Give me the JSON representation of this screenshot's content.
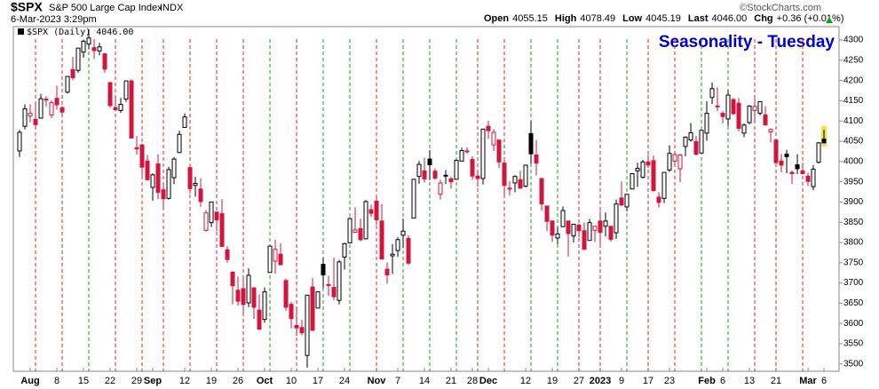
{
  "header": {
    "symbol": "$SPX",
    "name": "S&P 500 Large Cap Index",
    "exchange": "INDX",
    "timestamp": "6-Mar-2023 3:29pm",
    "open_label": "Open",
    "open": "4055.15",
    "high_label": "High",
    "high": "4078.49",
    "low_label": "Low",
    "low": "4045.19",
    "last_label": "Last",
    "last": "4046.00",
    "chg_label": "Chg",
    "chg": "+0.36 (+0.01%)",
    "copyright": "©StockCharts.com",
    "legend": "$SPX (Daily) 4046.00"
  },
  "chart_data": {
    "type": "candlestick",
    "title": "Seasonality - Tuesday",
    "title_color": "#0000cc",
    "up_color": "#000000",
    "down_color": "#d4143c",
    "tuesday_up_color": "#1a9a1a",
    "tuesday_down_color": "#e02020",
    "highlight_color": "#f5e04a",
    "open": [
      4026,
      4087,
      4112,
      4104,
      4107,
      4154,
      4115,
      4156,
      4133,
      4171,
      4227,
      4225,
      4270,
      4290,
      4281,
      4273,
      4266,
      4195,
      4133,
      4126,
      4154,
      4199,
      4034,
      4041,
      4001,
      3936,
      3994,
      3930,
      3909,
      3960,
      4022,
      4084,
      3985,
      3941,
      3932,
      3830,
      3849,
      3875,
      3871,
      3782,
      3727,
      3682,
      3686,
      3651,
      3688,
      3633,
      3610,
      3726,
      3754,
      3771,
      3706,
      3647,
      3595,
      3590,
      3521,
      3690,
      3638,
      3746,
      3696,
      3689,
      3657,
      3764,
      3799,
      3825,
      3834,
      3809,
      3881,
      3902,
      3853,
      3734,
      3767,
      3780,
      3818,
      3810,
      3860,
      3963,
      3977,
      4006,
      3976,
      3919,
      3966,
      3957,
      3956,
      4001,
      4024,
      4005,
      3964,
      3958,
      4087,
      4041,
      4053,
      3996,
      3934,
      3947,
      3955,
      3939,
      4069,
      4016,
      3958,
      3890,
      3853,
      3811,
      3839,
      3853,
      3816,
      3843,
      3829,
      3805,
      3830,
      3853,
      3840,
      3840,
      3824,
      3910,
      3888,
      3932,
      3977,
      3961,
      3999,
      4002,
      3912,
      3909,
      3979,
      4001,
      3982,
      4037,
      4053,
      4049,
      4021,
      4070,
      4158,
      4137,
      4119,
      4105,
      4153,
      4144,
      4070,
      4096,
      4126,
      4119,
      4115,
      4073,
      4053,
      4001,
      4018,
      3973,
      3992,
      3977,
      3964,
      3938,
      3998,
      4055.15
    ],
    "high": [
      4078,
      4141,
      4141,
      4140,
      4167,
      4161,
      4151,
      4187,
      4137,
      4211,
      4258,
      4280,
      4301,
      4326,
      4302,
      4293,
      4266,
      4195,
      4160,
      4157,
      4200,
      4203,
      4063,
      4044,
      4016,
      3971,
      4018,
      3943,
      3987,
      4011,
      4076,
      4119,
      3985,
      3962,
      3959,
      3880,
      3900,
      3876,
      3907,
      3791,
      3727,
      3716,
      3717,
      3736,
      3688,
      3672,
      3689,
      3791,
      3807,
      3798,
      3711,
      3653,
      3641,
      3609,
      3670,
      3712,
      3679,
      3762,
      3718,
      3763,
      3757,
      3799,
      3862,
      3887,
      3859,
      3905,
      3893,
      3911,
      3895,
      3751,
      3796,
      3813,
      3859,
      3818,
      3957,
      4001,
      4009,
      4028,
      3983,
      3955,
      3979,
      3962,
      4005,
      4034,
      4035,
      4013,
      3976,
      4080,
      4101,
      4080,
      4053,
      4002,
      3951,
      3966,
      3977,
      3991,
      4101,
      4053,
      3959,
      3890,
      3855,
      3838,
      3889,
      3853,
      3846,
      3846,
      3849,
      3858,
      3840,
      3878,
      3874,
      3840,
      3906,
      3951,
      3919,
      3971,
      3997,
      4004,
      4016,
      4015,
      3924,
      3973,
      4040,
      4023,
      4019,
      4062,
      4095,
      4063,
      4077,
      4149,
      4195,
      4183,
      4124,
      4176,
      4157,
      4157,
      4094,
      4139,
      4159,
      4149,
      4136,
      4082,
      4055,
      4018,
      4029,
      3978,
      4018,
      3997,
      3972,
      3991,
      4048,
      4078.49
    ],
    "low": [
      4011,
      4079,
      4097,
      4080,
      4107,
      4136,
      4107,
      4128,
      4112,
      4168,
      4201,
      4219,
      4256,
      4277,
      4253,
      4262,
      4219,
      4133,
      4124,
      4120,
      4147,
      4057,
      4017,
      3965,
      3954,
      3903,
      3907,
      3886,
      3906,
      3944,
      4022,
      4083,
      3921,
      3913,
      3888,
      3827,
      3838,
      3828,
      3789,
      3750,
      3647,
      3644,
      3624,
      3640,
      3611,
      3584,
      3602,
      3726,
      3723,
      3745,
      3631,
      3588,
      3569,
      3571,
      3491,
      3583,
      3638,
      3687,
      3668,
      3657,
      3647,
      3733,
      3799,
      3824,
      3803,
      3808,
      3863,
      3843,
      3758,
      3698,
      3722,
      3764,
      3786,
      3744,
      3860,
      3945,
      3948,
      3954,
      3955,
      3906,
      3944,
      3933,
      3956,
      4001,
      4020,
      3955,
      3937,
      3943,
      4056,
      4026,
      3984,
      3918,
      3916,
      3924,
      3933,
      3936,
      3994,
      3966,
      3879,
      3828,
      3801,
      3796,
      3839,
      3765,
      3800,
      3813,
      3783,
      3805,
      3801,
      3795,
      3815,
      3802,
      3809,
      3890,
      3877,
      3932,
      3937,
      3958,
      3984,
      3926,
      3886,
      3897,
      3974,
      3990,
      3949,
      4013,
      4049,
      4015,
      4021,
      4051,
      4142,
      4124,
      4094,
      4088,
      4115,
      4074,
      4060,
      4092,
      4095,
      4114,
      4089,
      4047,
      3995,
      3973,
      3971,
      3944,
      3969,
      3968,
      3939,
      3929,
      3995,
      4045.19
    ],
    "close": [
      4072,
      4130,
      4119,
      4091,
      4155,
      4152,
      4145,
      4140,
      4122,
      4210,
      4207,
      4280,
      4297,
      4305,
      4274,
      4283,
      4228,
      4138,
      4128,
      4141,
      4199,
      4058,
      4031,
      3986,
      3955,
      3967,
      3924,
      3908,
      3980,
      4006,
      4067,
      4110,
      3933,
      3946,
      3901,
      3873,
      3900,
      3856,
      3790,
      3758,
      3693,
      3655,
      3647,
      3719,
      3640,
      3586,
      3678,
      3791,
      3783,
      3745,
      3640,
      3612,
      3589,
      3577,
      3670,
      3583,
      3678,
      3720,
      3695,
      3666,
      3752,
      3797,
      3859,
      3831,
      3807,
      3901,
      3872,
      3856,
      3759,
      3720,
      3771,
      3807,
      3828,
      3749,
      3956,
      3993,
      3957,
      3992,
      3959,
      3947,
      3965,
      3950,
      4003,
      4027,
      4026,
      3964,
      3958,
      4080,
      4076,
      4072,
      3999,
      3941,
      3934,
      3963,
      3934,
      3991,
      4019,
      3996,
      3895,
      3852,
      3818,
      3821,
      3879,
      3822,
      3845,
      3829,
      3783,
      3849,
      3840,
      3825,
      3853,
      3808,
      3895,
      3893,
      3919,
      3970,
      3983,
      3999,
      3991,
      3928,
      3899,
      3973,
      4020,
      4017,
      4016,
      4060,
      4071,
      4018,
      4077,
      4119,
      4180,
      4136,
      4111,
      4164,
      4118,
      4082,
      4090,
      4137,
      4136,
      4148,
      4090,
      4079,
      3997,
      3991,
      4012,
      3970,
      3982,
      3970,
      3951,
      3981,
      4046,
      4046
    ],
    "tuesdays": [
      3,
      8,
      13,
      18,
      23,
      27,
      32,
      37,
      42,
      47,
      52,
      57,
      62,
      67,
      72,
      77,
      82,
      86,
      91,
      96,
      101,
      105,
      109,
      114,
      118,
      123,
      128,
      133,
      138,
      142,
      147
    ],
    "xlim": [
      -1.17,
      153.83
    ],
    "ylim": [
      3482,
      4333
    ],
    "yticks": [
      3500,
      3550,
      3600,
      3650,
      3700,
      3750,
      3800,
      3850,
      3900,
      3950,
      4000,
      4050,
      4100,
      4150,
      4200,
      4250,
      4300
    ],
    "xticks": [
      {
        "value": 2,
        "label": "Aug"
      },
      {
        "value": 7,
        "label": "8"
      },
      {
        "value": 12,
        "label": "15"
      },
      {
        "value": 17,
        "label": "22"
      },
      {
        "value": 22,
        "label": "29"
      },
      {
        "value": 25,
        "label": "Sep"
      },
      {
        "value": 31,
        "label": "12"
      },
      {
        "value": 36,
        "label": "19"
      },
      {
        "value": 41,
        "label": "26"
      },
      {
        "value": 46,
        "label": "Oct"
      },
      {
        "value": 51,
        "label": "10"
      },
      {
        "value": 56,
        "label": "17"
      },
      {
        "value": 61,
        "label": "24"
      },
      {
        "value": 67,
        "label": "Nov"
      },
      {
        "value": 71,
        "label": "7"
      },
      {
        "value": 76,
        "label": "14"
      },
      {
        "value": 81,
        "label": "21"
      },
      {
        "value": 85,
        "label": "28"
      },
      {
        "value": 88,
        "label": "Dec"
      },
      {
        "value": 95,
        "label": "12"
      },
      {
        "value": 100,
        "label": "19"
      },
      {
        "value": 105,
        "label": "27"
      },
      {
        "value": 109,
        "label": "2023"
      },
      {
        "value": 113,
        "label": "9"
      },
      {
        "value": 118,
        "label": "17"
      },
      {
        "value": 122,
        "label": "23"
      },
      {
        "value": 129,
        "label": "Feb"
      },
      {
        "value": 132,
        "label": "6"
      },
      {
        "value": 137,
        "label": "13"
      },
      {
        "value": 142,
        "label": "21"
      },
      {
        "value": 148,
        "label": "Mar"
      },
      {
        "value": 151,
        "label": "6"
      }
    ],
    "bold_xticks": [
      "Aug",
      "Sep",
      "Oct",
      "Nov",
      "Dec",
      "2023",
      "Feb",
      "Mar"
    ]
  }
}
